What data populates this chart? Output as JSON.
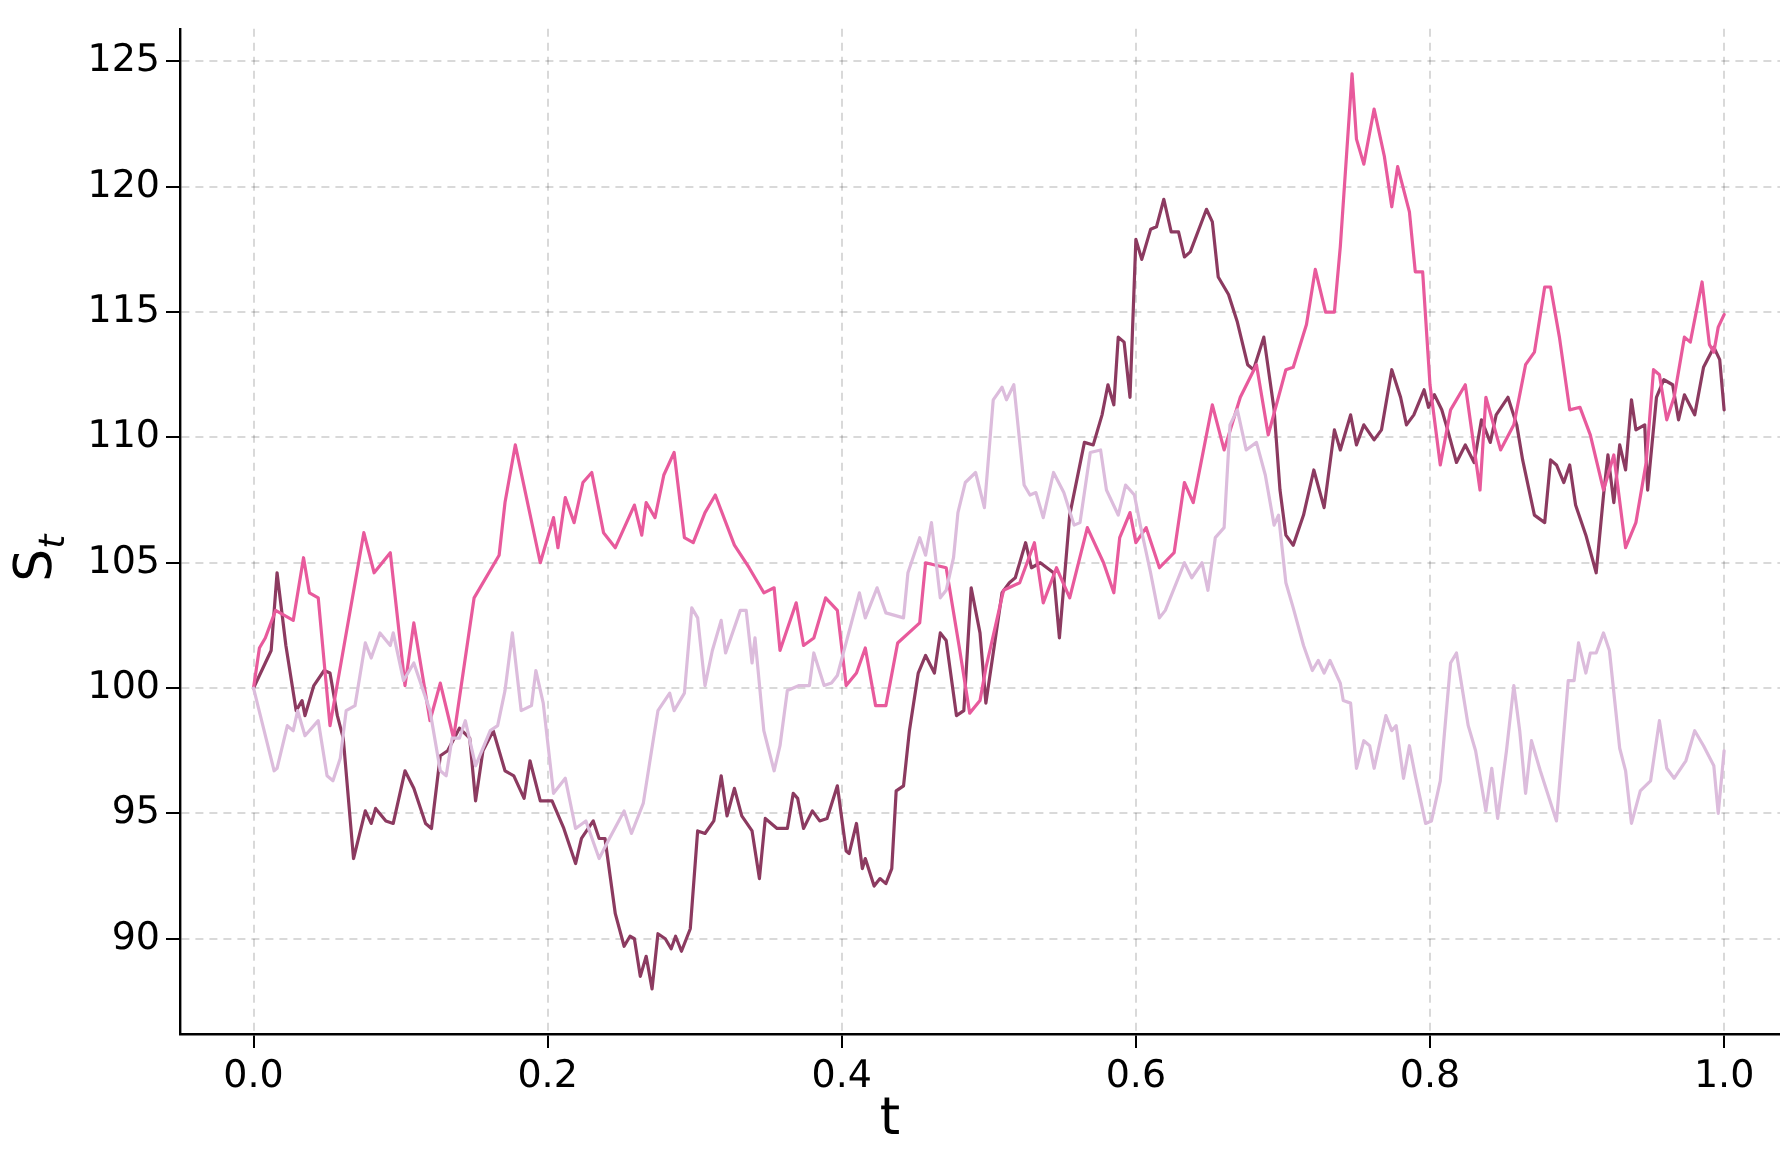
{
  "chart_data": {
    "type": "line",
    "xlabel": "t",
    "ylabel": "S$_{t}$",
    "xlim": [
      -0.05,
      1.038
    ],
    "ylim": [
      86.2,
      126.3
    ],
    "xticks": [
      {
        "value": 0,
        "label": "0.0"
      },
      0.2,
      0.4,
      0.6,
      0.8,
      {
        "value": 1,
        "label": "1.0"
      }
    ],
    "yticks": [
      90,
      95,
      100,
      105,
      110,
      115,
      120,
      125
    ],
    "grid": true,
    "legend": false,
    "marker": "none",
    "line_style": "solid",
    "series": [
      {
        "color": "#dcbcdc",
        "x": [
          0,
          0.014,
          0.016,
          0.023,
          0.027,
          0.03,
          0.035,
          0.044,
          0.05,
          0.054,
          0.059,
          0.063,
          0.069,
          0.076,
          0.08,
          0.086,
          0.093,
          0.095,
          0.102,
          0.109,
          0.12,
          0.127,
          0.131,
          0.135,
          0.14,
          0.144,
          0.151,
          0.161,
          0.166,
          0.171,
          0.176,
          0.182,
          0.189,
          0.192,
          0.197,
          0.204,
          0.212,
          0.219,
          0.226,
          0.235,
          0.242,
          0.252,
          0.257,
          0.265,
          0.272,
          0.275,
          0.283,
          0.286,
          0.293,
          0.298,
          0.302,
          0.307,
          0.312,
          0.318,
          0.321,
          0.331,
          0.335,
          0.339,
          0.341,
          0.347,
          0.354,
          0.358,
          0.363,
          0.371,
          0.378,
          0.381,
          0.388,
          0.393,
          0.397,
          0.407,
          0.412,
          0.416,
          0.424,
          0.43,
          0.442,
          0.445,
          0.453,
          0.457,
          0.461,
          0.467,
          0.471,
          0.476,
          0.479,
          0.484,
          0.491,
          0.497,
          0.503,
          0.509,
          0.512,
          0.517,
          0.524,
          0.528,
          0.532,
          0.537,
          0.544,
          0.551,
          0.558,
          0.562,
          0.569,
          0.576,
          0.58,
          0.588,
          0.593,
          0.599,
          0.603,
          0.61,
          0.616,
          0.62,
          0.633,
          0.638,
          0.645,
          0.649,
          0.654,
          0.66,
          0.664,
          0.669,
          0.675,
          0.682,
          0.688,
          0.694,
          0.697,
          0.702,
          0.707,
          0.714,
          0.72,
          0.724,
          0.728,
          0.732,
          0.739,
          0.741,
          0.746,
          0.75,
          0.755,
          0.759,
          0.762,
          0.77,
          0.774,
          0.777,
          0.782,
          0.786,
          0.79,
          0.797,
          0.801,
          0.807,
          0.814,
          0.818,
          0.826,
          0.831,
          0.838,
          0.842,
          0.846,
          0.852,
          0.857,
          0.861,
          0.865,
          0.869,
          0.875,
          0.886,
          0.894,
          0.898,
          0.901,
          0.906,
          0.909,
          0.913,
          0.918,
          0.922,
          0.929,
          0.933,
          0.937,
          0.943,
          0.95,
          0.956,
          0.961,
          0.966,
          0.974,
          0.98,
          0.986,
          0.993,
          0.996,
          1.0
        ],
        "values": [
          100,
          96.7,
          96.8,
          98.5,
          98.3,
          99.1,
          98.1,
          98.7,
          96.5,
          96.3,
          97.2,
          99.1,
          99.3,
          101.8,
          101.2,
          102.2,
          101.7,
          102.2,
          100.3,
          101.0,
          99.1,
          96.7,
          96.5,
          98.0,
          98.0,
          98.7,
          96.9,
          98.3,
          98.5,
          99.9,
          102.2,
          99.1,
          99.3,
          100.7,
          99.4,
          95.8,
          96.4,
          94.4,
          94.7,
          93.2,
          94.0,
          95.1,
          94.2,
          95.4,
          98.0,
          99.1,
          99.8,
          99.1,
          99.8,
          103.2,
          102.8,
          100.1,
          101.5,
          102.7,
          101.4,
          103.1,
          103.1,
          101.0,
          102.0,
          98.3,
          96.7,
          97.7,
          99.9,
          100.1,
          100.1,
          101.4,
          100.1,
          100.2,
          100.5,
          102.7,
          103.8,
          102.8,
          104.0,
          103.0,
          102.8,
          104.6,
          106.0,
          105.3,
          106.6,
          103.6,
          103.9,
          105.2,
          107.0,
          108.2,
          108.6,
          107.2,
          111.5,
          112.0,
          111.5,
          112.1,
          108.1,
          107.7,
          107.8,
          106.8,
          108.6,
          107.8,
          106.5,
          106.6,
          109.4,
          109.5,
          107.9,
          106.9,
          108.1,
          107.7,
          106.5,
          104.6,
          102.8,
          103.1,
          105.0,
          104.4,
          105.0,
          103.9,
          106.0,
          106.4,
          110.5,
          111.1,
          109.5,
          109.8,
          108.5,
          106.5,
          106.9,
          104.2,
          103.2,
          101.7,
          100.7,
          101.1,
          100.6,
          101.1,
          100.2,
          99.5,
          99.4,
          96.8,
          97.9,
          97.7,
          96.8,
          98.9,
          98.3,
          98.5,
          96.4,
          97.7,
          96.5,
          94.6,
          94.7,
          96.3,
          101.0,
          101.4,
          98.5,
          97.5,
          95.1,
          96.8,
          94.8,
          97.5,
          100.1,
          98.3,
          95.8,
          97.9,
          96.7,
          94.7,
          100.3,
          100.3,
          101.8,
          100.6,
          101.4,
          101.4,
          102.2,
          101.5,
          97.6,
          96.7,
          94.6,
          95.9,
          96.3,
          98.7,
          96.8,
          96.4,
          97.1,
          98.3,
          97.7,
          96.9,
          95.0,
          97.5
        ]
      },
      {
        "color": "#e85a9c",
        "x": [
          0,
          0.004,
          0.008,
          0.015,
          0.027,
          0.034,
          0.038,
          0.044,
          0.052,
          0.075,
          0.082,
          0.093,
          0.103,
          0.109,
          0.12,
          0.127,
          0.136,
          0.15,
          0.167,
          0.171,
          0.178,
          0.195,
          0.204,
          0.207,
          0.212,
          0.218,
          0.224,
          0.23,
          0.238,
          0.246,
          0.259,
          0.264,
          0.267,
          0.273,
          0.279,
          0.286,
          0.293,
          0.299,
          0.307,
          0.314,
          0.327,
          0.337,
          0.347,
          0.354,
          0.358,
          0.369,
          0.374,
          0.381,
          0.389,
          0.397,
          0.403,
          0.41,
          0.416,
          0.423,
          0.43,
          0.438,
          0.453,
          0.457,
          0.471,
          0.48,
          0.487,
          0.494,
          0.498,
          0.51,
          0.521,
          0.531,
          0.537,
          0.546,
          0.555,
          0.567,
          0.578,
          0.585,
          0.589,
          0.596,
          0.6,
          0.607,
          0.616,
          0.626,
          0.633,
          0.639,
          0.652,
          0.66,
          0.671,
          0.682,
          0.69,
          0.702,
          0.707,
          0.716,
          0.722,
          0.729,
          0.735,
          0.739,
          0.747,
          0.75,
          0.755,
          0.762,
          0.769,
          0.774,
          0.778,
          0.786,
          0.79,
          0.795,
          0.8,
          0.807,
          0.814,
          0.824,
          0.834,
          0.838,
          0.848,
          0.857,
          0.865,
          0.871,
          0.878,
          0.882,
          0.888,
          0.895,
          0.902,
          0.909,
          0.918,
          0.925,
          0.933,
          0.94,
          0.947,
          0.952,
          0.956,
          0.961,
          0.966,
          0.973,
          0.977,
          0.985,
          0.99,
          0.993,
          0.996,
          1.0
        ],
        "values": [
          100,
          101.6,
          102,
          103.1,
          102.7,
          105.2,
          103.8,
          103.6,
          98.5,
          106.2,
          104.6,
          105.4,
          100.1,
          102.6,
          98.7,
          100.2,
          98,
          103.6,
          105.3,
          107.4,
          109.7,
          105,
          106.8,
          105.6,
          107.6,
          106.6,
          108.2,
          108.6,
          106.2,
          105.6,
          107.3,
          106.1,
          107.4,
          106.8,
          108.5,
          109.4,
          106,
          105.8,
          107,
          107.7,
          105.7,
          104.8,
          103.8,
          104,
          101.5,
          103.4,
          101.7,
          102,
          103.6,
          103.1,
          100.1,
          100.6,
          101.6,
          99.3,
          99.3,
          101.8,
          102.6,
          105,
          104.8,
          101.6,
          99.0,
          99.5,
          100.8,
          103.9,
          104.2,
          105.8,
          103.4,
          104.8,
          103.6,
          106.4,
          105,
          103.8,
          106,
          107,
          105.8,
          106.4,
          104.8,
          105.4,
          108.2,
          107.4,
          111.3,
          109.5,
          111.6,
          112.9,
          110.1,
          112.7,
          112.8,
          114.5,
          116.7,
          115,
          115,
          117.6,
          124.5,
          121.9,
          120.9,
          123.1,
          121.2,
          119.2,
          120.8,
          119,
          116.6,
          116.6,
          112.1,
          108.9,
          111.1,
          112.1,
          107.9,
          111.6,
          109.5,
          110.5,
          112.9,
          113.4,
          116,
          116,
          114,
          111.1,
          111.2,
          110.1,
          107.9,
          109.3,
          105.6,
          106.6,
          109,
          112.7,
          112.5,
          110.7,
          111.6,
          114,
          113.8,
          116.2,
          113.7,
          113.4,
          114.4,
          114.9
        ]
      },
      {
        "color": "#8c3a60",
        "x": [
          0,
          0.008,
          0.012,
          0.016,
          0.022,
          0.029,
          0.033,
          0.035,
          0.041,
          0.048,
          0.052,
          0.057,
          0.061,
          0.068,
          0.076,
          0.08,
          0.083,
          0.09,
          0.095,
          0.103,
          0.109,
          0.117,
          0.121,
          0.127,
          0.132,
          0.14,
          0.147,
          0.151,
          0.156,
          0.163,
          0.171,
          0.177,
          0.184,
          0.188,
          0.195,
          0.203,
          0.211,
          0.219,
          0.223,
          0.231,
          0.235,
          0.239,
          0.246,
          0.252,
          0.256,
          0.259,
          0.263,
          0.267,
          0.271,
          0.275,
          0.28,
          0.284,
          0.287,
          0.291,
          0.297,
          0.302,
          0.307,
          0.313,
          0.318,
          0.322,
          0.327,
          0.332,
          0.339,
          0.344,
          0.348,
          0.356,
          0.363,
          0.367,
          0.37,
          0.374,
          0.38,
          0.385,
          0.39,
          0.397,
          0.403,
          0.405,
          0.41,
          0.414,
          0.416,
          0.422,
          0.426,
          0.43,
          0.434,
          0.437,
          0.442,
          0.446,
          0.452,
          0.457,
          0.463,
          0.467,
          0.471,
          0.478,
          0.483,
          0.488,
          0.494,
          0.498,
          0.501,
          0.509,
          0.514,
          0.518,
          0.525,
          0.529,
          0.535,
          0.544,
          0.548,
          0.555,
          0.565,
          0.571,
          0.577,
          0.581,
          0.585,
          0.588,
          0.592,
          0.596,
          0.6,
          0.604,
          0.61,
          0.614,
          0.619,
          0.624,
          0.629,
          0.633,
          0.637,
          0.648,
          0.652,
          0.656,
          0.663,
          0.669,
          0.676,
          0.68,
          0.687,
          0.694,
          0.698,
          0.702,
          0.707,
          0.714,
          0.721,
          0.728,
          0.735,
          0.739,
          0.746,
          0.75,
          0.755,
          0.762,
          0.767,
          0.774,
          0.78,
          0.784,
          0.789,
          0.796,
          0.799,
          0.803,
          0.808,
          0.812,
          0.818,
          0.824,
          0.83,
          0.835,
          0.841,
          0.845,
          0.853,
          0.859,
          0.863,
          0.871,
          0.878,
          0.882,
          0.886,
          0.891,
          0.895,
          0.899,
          0.906,
          0.913,
          0.918,
          0.921,
          0.925,
          0.929,
          0.933,
          0.937,
          0.94,
          0.946,
          0.948,
          0.954,
          0.959,
          0.965,
          0.969,
          0.973,
          0.98,
          0.986,
          0.993,
          0.997,
          1.0
        ],
        "values": [
          100,
          101,
          101.5,
          104.6,
          101.7,
          99.1,
          99.5,
          98.9,
          100.1,
          100.7,
          100.6,
          98.9,
          98.0,
          93.2,
          95.1,
          94.6,
          95.2,
          94.7,
          94.6,
          96.7,
          96.0,
          94.6,
          94.4,
          97.3,
          97.5,
          98.4,
          98.0,
          95.5,
          97.5,
          98.3,
          96.7,
          96.5,
          95.6,
          97.1,
          95.5,
          95.5,
          94.4,
          93.0,
          94.0,
          94.7,
          94.0,
          94.0,
          91.0,
          89.7,
          90.1,
          90.0,
          88.5,
          89.3,
          88.0,
          90.2,
          90.0,
          89.6,
          90.1,
          89.5,
          90.4,
          94.3,
          94.2,
          94.7,
          96.5,
          94.9,
          96.0,
          94.9,
          94.3,
          92.4,
          94.8,
          94.4,
          94.4,
          95.8,
          95.6,
          94.4,
          95.1,
          94.7,
          94.8,
          96.1,
          93.5,
          93.4,
          94.6,
          92.8,
          93.2,
          92.1,
          92.4,
          92.2,
          92.8,
          95.9,
          96.1,
          98.3,
          100.6,
          101.3,
          100.6,
          102.2,
          101.9,
          98.9,
          99.1,
          104.0,
          102.2,
          99.4,
          100.6,
          103.8,
          104.2,
          104.4,
          105.8,
          104.8,
          105.0,
          104.6,
          102.0,
          106.9,
          109.8,
          109.7,
          110.9,
          112.1,
          111.3,
          114.0,
          113.8,
          111.6,
          117.9,
          117.1,
          118.3,
          118.4,
          119.5,
          118.2,
          118.2,
          117.2,
          117.4,
          119.1,
          118.6,
          116.4,
          115.7,
          114.6,
          112.9,
          112.7,
          114.0,
          111.1,
          107.9,
          106.1,
          105.7,
          106.9,
          108.7,
          107.2,
          110.3,
          109.5,
          110.9,
          109.7,
          110.5,
          109.9,
          110.3,
          112.7,
          111.6,
          110.5,
          110.9,
          111.9,
          111.2,
          111.7,
          111.1,
          110.3,
          109.0,
          109.7,
          109.0,
          110.7,
          109.8,
          110.9,
          111.6,
          110.5,
          109.1,
          106.9,
          106.6,
          109.1,
          108.9,
          108.2,
          108.9,
          107.3,
          106.1,
          104.6,
          107.7,
          109.3,
          107.4,
          109.7,
          108.7,
          111.5,
          110.3,
          110.5,
          107.9,
          111.6,
          112.3,
          112.1,
          110.7,
          111.7,
          110.9,
          112.8,
          113.6,
          113.1,
          111.1
        ]
      }
    ]
  }
}
